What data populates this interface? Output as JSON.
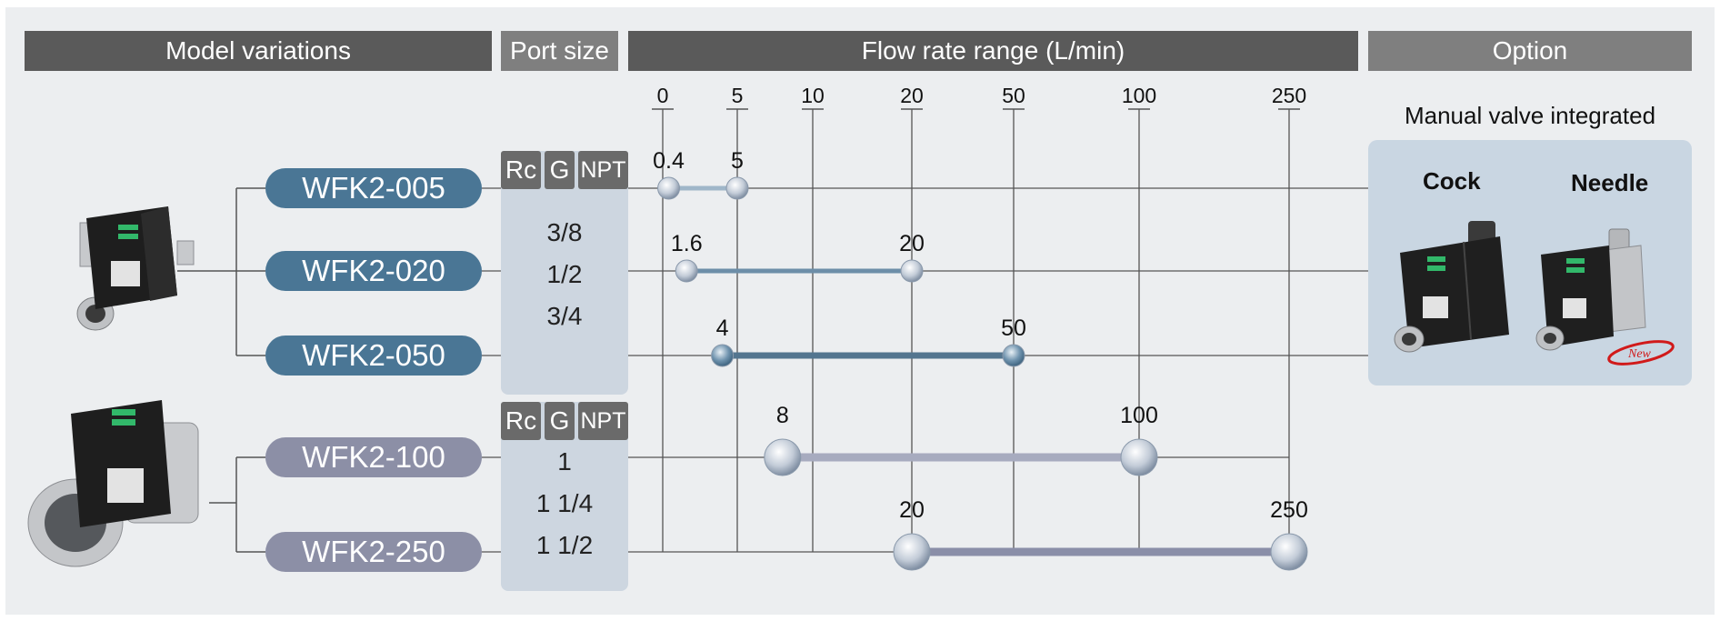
{
  "headers": {
    "model": "Model variations",
    "port": "Port size",
    "flow": "Flow rate range (L/min)",
    "option": "Option"
  },
  "flow_axis": {
    "ticks": [
      "0",
      "5",
      "10",
      "20",
      "50",
      "100",
      "250"
    ]
  },
  "models": [
    {
      "name": "WFK2-005",
      "min_label": "0.4",
      "max_label": "5",
      "min": 0.4,
      "max": 5
    },
    {
      "name": "WFK2-020",
      "min_label": "1.6",
      "max_label": "20",
      "min": 1.6,
      "max": 20
    },
    {
      "name": "WFK2-050",
      "min_label": "4",
      "max_label": "50",
      "min": 4,
      "max": 50
    },
    {
      "name": "WFK2-100",
      "min_label": "8",
      "max_label": "100",
      "min": 8,
      "max": 100
    },
    {
      "name": "WFK2-250",
      "min_label": "20",
      "max_label": "250",
      "min": 20,
      "max": 250
    }
  ],
  "port_groups": [
    {
      "standards": [
        "Rc",
        "G",
        "NPT"
      ],
      "sizes": [
        "3/8",
        "1/2",
        "3/4"
      ]
    },
    {
      "standards": [
        "Rc",
        "G",
        "NPT"
      ],
      "sizes": [
        "1",
        "1 1/4",
        "1 1/2"
      ]
    }
  ],
  "option": {
    "title": "Manual valve integrated",
    "items": [
      "Cock",
      "Needle"
    ],
    "new_badge": "New"
  },
  "colors": {
    "header_dark": "#5a5a5a",
    "header_light": "#7f7f7f",
    "model_blue": "#4a7695",
    "model_grey": "#8c8fa6",
    "bar_light_blue": "#9fb6c9",
    "bar_mid_blue": "#6d8ea8",
    "bar_dark_blue": "#53758f",
    "bar_light_grey": "#a7abbf",
    "bar_dark_grey": "#8a8ea8",
    "port_box": "#cdd6e0",
    "option_box": "#c9d6e2"
  }
}
